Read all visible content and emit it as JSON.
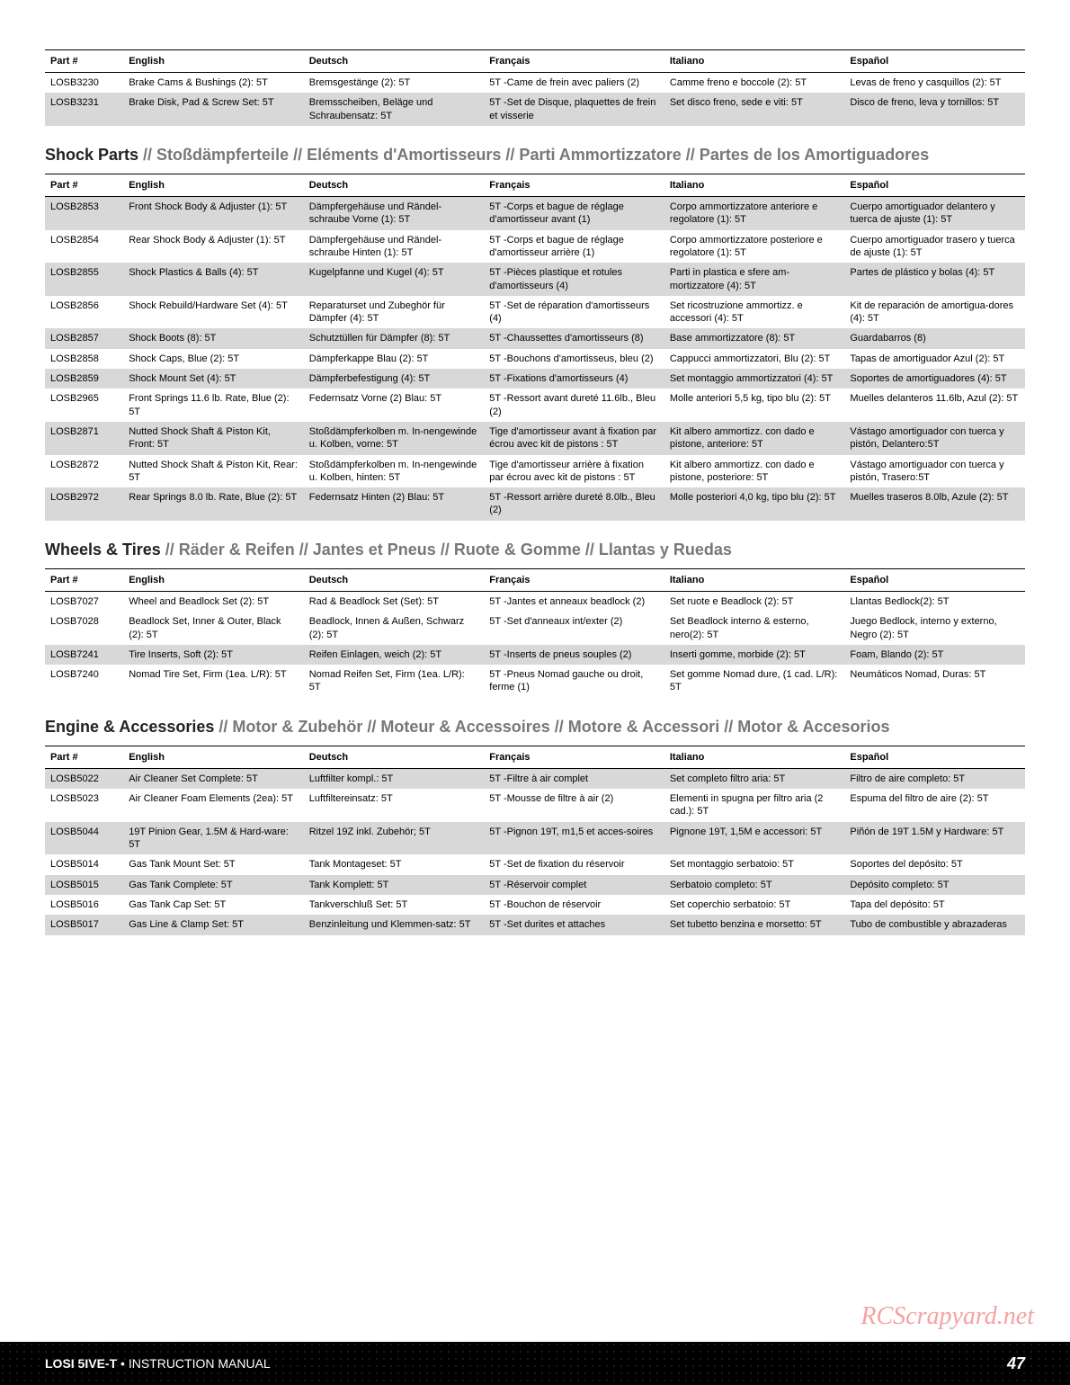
{
  "headers": {
    "part": "Part #",
    "english": "English",
    "deutsch": "Deutsch",
    "francais": "Français",
    "italiano": "Italiano",
    "espanol": "Español"
  },
  "table1": {
    "rows": [
      {
        "part": "LOSB3230",
        "en": "Brake Cams & Bushings (2): 5T",
        "de": "Bremsgestänge (2): 5T",
        "fr": "5T -Came de frein avec paliers (2)",
        "it": "Camme freno e boccole (2): 5T",
        "es": "Levas de freno y casquillos (2): 5T"
      },
      {
        "part": "LOSB3231",
        "en": "Brake Disk, Pad & Screw Set: 5T",
        "de": "Bremsscheiben, Beläge und Schraubensatz: 5T",
        "fr": "5T -Set de Disque, plaquettes de frein et visserie",
        "it": "Set disco freno, sede e viti: 5T",
        "es": "Disco de freno, leva y tornillos: 5T"
      }
    ]
  },
  "section2": {
    "title_main": "Shock Parts",
    "title_rest": " // Stoßdämpferteile // Eléments d'Amortisseurs // Parti Ammortizzatore // Partes de los Amortiguadores"
  },
  "table2": {
    "rows": [
      {
        "part": "LOSB2853",
        "en": "Front Shock Body & Adjuster (1): 5T",
        "de": "Dämpfergehäuse und Rändel-schraube Vorne (1): 5T",
        "fr": "5T -Corps et bague de réglage d'amortisseur avant (1)",
        "it": "Corpo ammortizzatore anteriore e regolatore (1): 5T",
        "es": "Cuerpo amortiguador delantero y tuerca de ajuste (1): 5T"
      },
      {
        "part": "LOSB2854",
        "en": "Rear Shock Body & Adjuster (1): 5T",
        "de": "Dämpfergehäuse und Rändel-schraube Hinten (1): 5T",
        "fr": "5T -Corps et bague de réglage d'amortisseur arrière (1)",
        "it": "Corpo ammortizzatore posteriore e regolatore (1): 5T",
        "es": "Cuerpo amortiguador trasero y tuerca de ajuste (1): 5T"
      },
      {
        "part": "LOSB2855",
        "en": "Shock Plastics & Balls (4): 5T",
        "de": "Kugelpfanne und Kugel (4): 5T",
        "fr": "5T -Pièces plastique et rotules d'amortisseurs (4)",
        "it": "Parti in plastica e sfere am-mortizzatore (4): 5T",
        "es": "Partes de plástico y bolas (4): 5T"
      },
      {
        "part": "LOSB2856",
        "en": "Shock Rebuild/Hardware Set (4): 5T",
        "de": "Reparaturset und Zubeghör für Dämpfer (4): 5T",
        "fr": "5T -Set de réparation d'amortisseurs (4)",
        "it": "Set ricostruzione ammortizz. e accessori (4): 5T",
        "es": "Kit de reparación de amortigua-dores (4): 5T"
      },
      {
        "part": "LOSB2857",
        "en": "Shock Boots (8): 5T",
        "de": "Schutztüllen für Dämpfer (8): 5T",
        "fr": "5T -Chaussettes d'amortisseurs (8)",
        "it": "Base ammortizzatore (8): 5T",
        "es": "Guardabarros (8)"
      },
      {
        "part": "LOSB2858",
        "en": "Shock Caps, Blue (2): 5T",
        "de": "Dämpferkappe Blau (2): 5T",
        "fr": "5T -Bouchons d'amortisseus, bleu (2)",
        "it": "Cappucci ammortizzatori, Blu (2): 5T",
        "es": "Tapas de amortiguador Azul (2): 5T"
      },
      {
        "part": "LOSB2859",
        "en": "Shock Mount Set (4): 5T",
        "de": "Dämpferbefestigung (4): 5T",
        "fr": "5T -Fixations d'amortisseurs (4)",
        "it": "Set montaggio ammortizzatori (4): 5T",
        "es": "Soportes de amortiguadores (4): 5T"
      },
      {
        "part": "LOSB2965",
        "en": "Front Springs 11.6 lb. Rate, Blue (2): 5T",
        "de": "Federnsatz Vorne (2) Blau: 5T",
        "fr": "5T -Ressort avant dureté 11.6lb., Bleu (2)",
        "it": "Molle anteriori 5,5 kg, tipo blu (2): 5T",
        "es": "Muelles delanteros 11.6lb, Azul (2): 5T"
      },
      {
        "part": "LOSB2871",
        "en": "Nutted Shock Shaft & Piston Kit, Front: 5T",
        "de": "Stoßdämpferkolben m. In-nengewinde u. Kolben, vorne: 5T",
        "fr": "Tige d'amortisseur avant à fixation par écrou avec kit de pistons : 5T",
        "it": "Kit albero ammortizz. con dado e pistone, anteriore: 5T",
        "es": "Vástago amortiguador con tuerca y pistón, Delantero:5T"
      },
      {
        "part": "LOSB2872",
        "en": "Nutted Shock Shaft & Piston Kit, Rear: 5T",
        "de": "Stoßdämpferkolben m. In-nengewinde u. Kolben, hinten: 5T",
        "fr": "Tige d'amortisseur arrière à fixation par écrou avec kit de pistons : 5T",
        "it": "Kit albero ammortizz. con dado e pistone, posteriore: 5T",
        "es": "Vástago amortiguador con tuerca y pistón, Trasero:5T"
      },
      {
        "part": "LOSB2972",
        "en": "Rear Springs 8.0 lb. Rate, Blue (2): 5T",
        "de": "Federnsatz Hinten (2) Blau: 5T",
        "fr": "5T -Ressort arrière dureté 8.0lb., Bleu (2)",
        "it": "Molle posteriori 4,0 kg, tipo blu (2): 5T",
        "es": "Muelles traseros 8.0lb, Azule (2): 5T"
      }
    ]
  },
  "section3": {
    "title_main": "Wheels & Tires",
    "title_rest": " // Räder & Reifen // Jantes et Pneus // Ruote & Gomme // Llantas y Ruedas"
  },
  "table3": {
    "rows": [
      {
        "part": "LOSB7027",
        "en": "Wheel and Beadlock Set (2): 5T",
        "de": "Rad & Beadlock Set (Set): 5T",
        "fr": "5T -Jantes et anneaux beadlock (2)",
        "it": "Set ruote e Beadlock (2): 5T",
        "es": "Llantas Bedlock(2): 5T"
      },
      {
        "part": "LOSB7028",
        "en": "Beadlock Set, Inner & Outer, Black (2): 5T",
        "de": "Beadlock, Innen & Außen, Schwarz (2): 5T",
        "fr": "5T -Set d'anneaux int/exter (2)",
        "it": "Set Beadlock interno & esterno, nero(2): 5T",
        "es": "Juego Bedlock, interno y externo, Negro (2): 5T"
      },
      {
        "part": "LOSB7241",
        "en": "Tire Inserts, Soft (2): 5T",
        "de": "Reifen Einlagen, weich (2): 5T",
        "fr": "5T -Inserts de pneus souples (2)",
        "it": "Inserti gomme, morbide (2): 5T",
        "es": "Foam, Blando (2): 5T"
      },
      {
        "part": "LOSB7240",
        "en": "Nomad Tire Set, Firm (1ea. L/R): 5T",
        "de": "Nomad Reifen Set, Firm (1ea. L/R): 5T",
        "fr": "5T -Pneus Nomad gauche ou droit, ferme (1)",
        "it": "Set gomme Nomad dure, (1 cad. L/R): 5T",
        "es": "Neumáticos Nomad, Duras: 5T"
      }
    ]
  },
  "section4": {
    "title_main": "Engine & Accessories",
    "title_rest": " // Motor & Zubehör // Moteur & Accessoires // Motore & Accessori // Motor & Accesorios"
  },
  "table4": {
    "rows": [
      {
        "part": "LOSB5022",
        "en": "Air Cleaner Set Complete: 5T",
        "de": "Luftfilter kompl.: 5T",
        "fr": "5T -Filtre à air complet",
        "it": "Set completo filtro aria: 5T",
        "es": "Filtro de aire completo: 5T"
      },
      {
        "part": "LOSB5023",
        "en": "Air Cleaner Foam Elements (2ea): 5T",
        "de": "Luftfiltereinsatz: 5T",
        "fr": "5T -Mousse de filtre à air (2)",
        "it": "Elementi in spugna per filtro aria (2 cad.): 5T",
        "es": "Espuma del filtro de aire (2): 5T"
      },
      {
        "part": "LOSB5044",
        "en": "19T Pinion Gear, 1.5M  & Hard-ware: 5T",
        "de": "Ritzel 19Z inkl. Zubehör; 5T",
        "fr": "5T -Pignon 19T, m1,5 et acces-soires",
        "it": "Pignone 19T, 1,5M e accessori: 5T",
        "es": "Piñón de 19T 1.5M y Hardware: 5T"
      },
      {
        "part": "LOSB5014",
        "en": "Gas Tank Mount Set: 5T",
        "de": "Tank Montageset: 5T",
        "fr": "5T -Set de fixation du réservoir",
        "it": "Set montaggio serbatoio: 5T",
        "es": "Soportes del depósito: 5T"
      },
      {
        "part": "LOSB5015",
        "en": "Gas Tank Complete: 5T",
        "de": "Tank Komplett: 5T",
        "fr": "5T -Réservoir complet",
        "it": "Serbatoio completo: 5T",
        "es": "Depósito completo: 5T"
      },
      {
        "part": "LOSB5016",
        "en": "Gas Tank Cap Set: 5T",
        "de": "Tankverschluß Set: 5T",
        "fr": "5T -Bouchon de réservoir",
        "it": "Set coperchio serbatoio: 5T",
        "es": "Tapa del depósito: 5T"
      },
      {
        "part": "LOSB5017",
        "en": "Gas Line & Clamp Set: 5T",
        "de": "Benzinleitung und Klemmen-satz: 5T",
        "fr": "5T -Set durites et attaches",
        "it": "Set tubetto benzina e morsetto: 5T",
        "es": "Tubo de combustible y abrazaderas"
      }
    ]
  },
  "footer": {
    "product": "LOSI 5IVE-T",
    "separator": " • ",
    "doc": "INSTRUCTION MANUAL",
    "page": "47"
  },
  "watermark": "RCScrapyard.net",
  "colors": {
    "row_odd": "#d8d8d8",
    "row_even": "#ffffff",
    "title_light": "#777777",
    "footer_bg": "#000000",
    "watermark": "#e55555"
  }
}
